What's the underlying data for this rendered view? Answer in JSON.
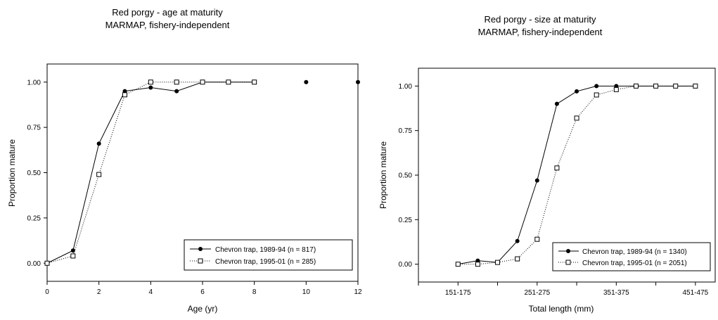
{
  "chart_data": [
    {
      "type": "line",
      "title": "Red porgy - age at maturity",
      "subtitle": "MARMAP, fishery-independent",
      "xlabel": "Age (yr)",
      "ylabel": "Proportion mature",
      "xlim": [
        0,
        12
      ],
      "ylim": [
        -0.1,
        1.1
      ],
      "xticks": [
        "0",
        "2",
        "4",
        "6",
        "8",
        "10",
        "12"
      ],
      "yticks": [
        "0.00",
        "0.25",
        "0.50",
        "0.75",
        "1.00"
      ],
      "grid": false,
      "legend_position": "bottom-right",
      "series": [
        {
          "name": "Chevron trap, 1989-94 (n = 817)",
          "line": "solid",
          "marker": "filled-circle",
          "x": [
            0,
            1,
            2,
            3,
            4,
            5,
            6,
            7,
            8
          ],
          "y": [
            0.0,
            0.07,
            0.66,
            0.95,
            0.97,
            0.95,
            1.0,
            1.0,
            1.0
          ],
          "extra_points": {
            "x": [
              10,
              12
            ],
            "y": [
              1.0,
              1.0
            ]
          }
        },
        {
          "name": "Chevron trap, 1995-01 (n = 285)",
          "line": "dotted",
          "marker": "open-square",
          "x": [
            0,
            1,
            2,
            3,
            4,
            5,
            6,
            7,
            8
          ],
          "y": [
            0.0,
            0.04,
            0.49,
            0.93,
            1.0,
            1.0,
            1.0,
            1.0,
            1.0
          ]
        }
      ]
    },
    {
      "type": "line",
      "title": "Red porgy - size at maturity",
      "subtitle": "MARMAP, fishery-independent",
      "xlabel": "Total length (mm)",
      "ylabel": "Proportion mature",
      "xlim": [
        0,
        15
      ],
      "ylim": [
        -0.1,
        1.1
      ],
      "xtick_labels": [
        {
          "x": 2,
          "label": "151-175"
        },
        {
          "x": 6,
          "label": "251-275"
        },
        {
          "x": 10,
          "label": "351-375"
        },
        {
          "x": 14,
          "label": "451-475"
        }
      ],
      "yticks": [
        "0.00",
        "0.25",
        "0.50",
        "0.75",
        "1.00"
      ],
      "grid": false,
      "legend_position": "bottom-right",
      "series": [
        {
          "name": "Chevron trap, 1989-94 (n = 1340)",
          "line": "solid",
          "marker": "filled-circle",
          "x": [
            2,
            3,
            4,
            5,
            6,
            7,
            8,
            9,
            10,
            11,
            12,
            13,
            14
          ],
          "y": [
            0.0,
            0.02,
            0.01,
            0.13,
            0.47,
            0.9,
            0.97,
            1.0,
            1.0,
            1.0,
            1.0,
            1.0,
            1.0
          ]
        },
        {
          "name": "Chevron trap, 1995-01 (n = 2051)",
          "line": "dotted",
          "marker": "open-square",
          "x": [
            2,
            3,
            4,
            5,
            6,
            7,
            8,
            9,
            10,
            11,
            12,
            13,
            14
          ],
          "y": [
            0.0,
            0.0,
            0.01,
            0.03,
            0.14,
            0.54,
            0.82,
            0.95,
            0.98,
            1.0,
            1.0,
            1.0,
            1.0
          ]
        }
      ]
    }
  ]
}
